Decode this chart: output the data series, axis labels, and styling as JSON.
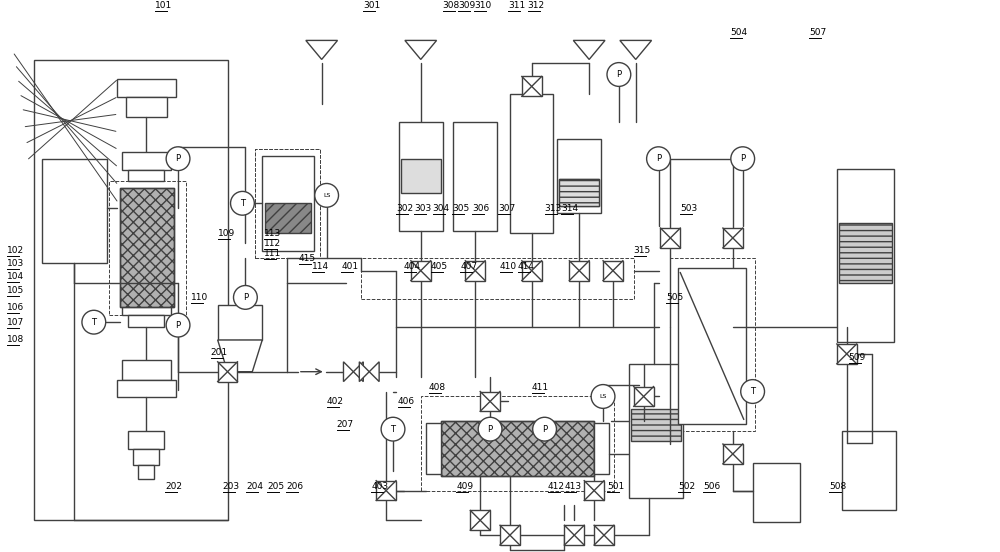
{
  "bg": "#ffffff",
  "lc": "#404040",
  "lw": 1.0,
  "fig_w": 10.0,
  "fig_h": 5.52,
  "label_fs": 6.5,
  "labels": [
    [
      "101",
      1.52,
      0.05
    ],
    [
      "102",
      0.02,
      2.52
    ],
    [
      "103",
      0.02,
      2.65
    ],
    [
      "104",
      0.02,
      2.78
    ],
    [
      "105",
      0.02,
      2.93
    ],
    [
      "106",
      0.02,
      3.1
    ],
    [
      "107",
      0.02,
      3.25
    ],
    [
      "108",
      0.02,
      3.42
    ],
    [
      "109",
      2.15,
      2.35
    ],
    [
      "110",
      1.88,
      3.0
    ],
    [
      "111",
      2.62,
      2.55
    ],
    [
      "112",
      2.62,
      2.45
    ],
    [
      "113",
      2.62,
      2.35
    ],
    [
      "114",
      3.1,
      2.68
    ],
    [
      "415",
      2.97,
      2.6
    ],
    [
      "201",
      2.08,
      3.55
    ],
    [
      "202",
      1.62,
      4.9
    ],
    [
      "203",
      2.2,
      4.9
    ],
    [
      "204",
      2.44,
      4.9
    ],
    [
      "205",
      2.65,
      4.9
    ],
    [
      "206",
      2.84,
      4.9
    ],
    [
      "207",
      3.35,
      4.28
    ],
    [
      "301",
      3.62,
      0.05
    ],
    [
      "302",
      3.95,
      2.1
    ],
    [
      "303",
      4.13,
      2.1
    ],
    [
      "304",
      4.32,
      2.1
    ],
    [
      "305",
      4.52,
      2.1
    ],
    [
      "306",
      4.72,
      2.1
    ],
    [
      "307",
      4.98,
      2.1
    ],
    [
      "308",
      4.42,
      0.05
    ],
    [
      "309",
      4.58,
      0.05
    ],
    [
      "310",
      4.74,
      0.05
    ],
    [
      "311",
      5.08,
      0.05
    ],
    [
      "312",
      5.28,
      0.05
    ],
    [
      "313",
      5.45,
      2.1
    ],
    [
      "314",
      5.62,
      2.1
    ],
    [
      "315",
      6.35,
      2.52
    ],
    [
      "401",
      3.4,
      2.68
    ],
    [
      "402",
      3.25,
      4.05
    ],
    [
      "403",
      3.7,
      4.9
    ],
    [
      "404",
      4.03,
      2.68
    ],
    [
      "405",
      4.3,
      2.68
    ],
    [
      "406",
      3.97,
      4.05
    ],
    [
      "407",
      4.6,
      2.68
    ],
    [
      "408",
      4.28,
      3.9
    ],
    [
      "409",
      4.56,
      4.9
    ],
    [
      "410",
      5.0,
      2.68
    ],
    [
      "411",
      5.32,
      3.9
    ],
    [
      "412",
      5.48,
      4.9
    ],
    [
      "413",
      5.65,
      4.9
    ],
    [
      "414",
      5.18,
      2.68
    ],
    [
      "501",
      6.08,
      4.9
    ],
    [
      "502",
      6.8,
      4.9
    ],
    [
      "503",
      6.82,
      2.1
    ],
    [
      "504",
      7.32,
      0.32
    ],
    [
      "505",
      6.68,
      3.0
    ],
    [
      "506",
      7.05,
      4.9
    ],
    [
      "507",
      8.12,
      0.32
    ],
    [
      "508",
      8.32,
      4.9
    ],
    [
      "509",
      8.52,
      3.6
    ]
  ]
}
